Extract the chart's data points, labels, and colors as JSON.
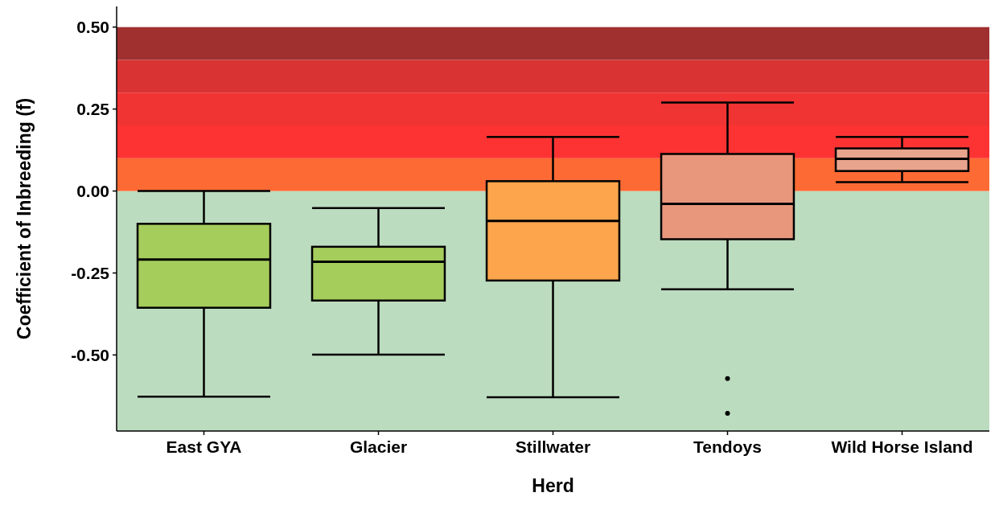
{
  "chart_data": {
    "type": "box",
    "xlabel": "Herd",
    "ylabel": "Coefficient of Inbreeding (f)",
    "categories": [
      "East GYA",
      "Glacier",
      "Stillwater",
      "Tendoys",
      "Wild Horse Island"
    ],
    "boxes": [
      {
        "low": -0.627,
        "q1": -0.356,
        "median": -0.209,
        "q3": -0.1,
        "high": 0.0
      },
      {
        "low": -0.499,
        "q1": -0.334,
        "median": -0.216,
        "q3": -0.17,
        "high": -0.052
      },
      {
        "low": -0.629,
        "q1": -0.273,
        "median": -0.091,
        "q3": 0.03,
        "high": 0.165
      },
      {
        "low": -0.3,
        "q1": -0.147,
        "median": -0.039,
        "q3": 0.113,
        "high": 0.27,
        "outliers": [
          -0.572,
          -0.678
        ]
      },
      {
        "low": 0.027,
        "q1": 0.061,
        "median": 0.098,
        "q3": 0.13,
        "high": 0.165
      }
    ],
    "colors": [
      "#a5cd5c",
      "#a5cd5c",
      "#fca54c",
      "#e8977c",
      "#e8a48c"
    ],
    "ylim": [
      -0.732,
      0.563
    ],
    "yticks": [
      {
        "value": 0.5,
        "label": "0.50"
      },
      {
        "value": 0.25,
        "label": "0.25"
      },
      {
        "value": 0,
        "label": "0.00"
      },
      {
        "value": -0.25,
        "label": "-0.25"
      },
      {
        "value": -0.5,
        "label": "-0.50"
      }
    ],
    "bands": [
      {
        "axis": "y",
        "from": -0.732,
        "to": 0,
        "color": "#bcdcbf"
      },
      {
        "axis": "y",
        "from": 0,
        "to": 0.1,
        "color": "#fd6a33"
      },
      {
        "axis": "y",
        "from": 0.1,
        "to": 0.2,
        "color": "#fd3333"
      },
      {
        "axis": "y",
        "from": 0.2,
        "to": 0.3,
        "color": "#f03333"
      },
      {
        "axis": "y",
        "from": 0.3,
        "to": 0.4,
        "color": "#d93333"
      },
      {
        "axis": "y",
        "from": 0.4,
        "to": 0.5,
        "color": "#a03030"
      }
    ],
    "grid": false
  }
}
